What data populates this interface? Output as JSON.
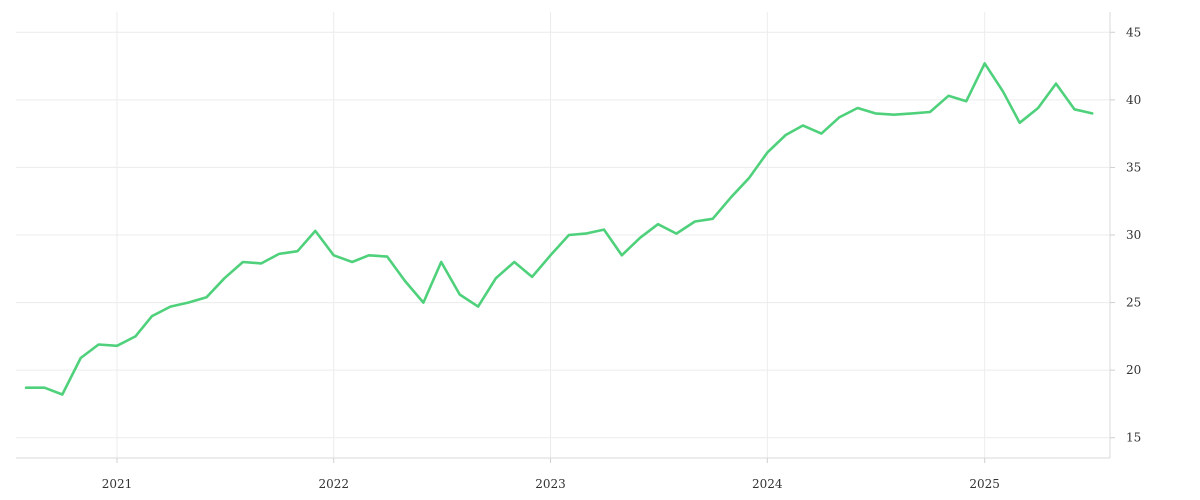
{
  "chart_data": {
    "type": "line",
    "title": "",
    "xlabel": "",
    "ylabel": "",
    "x_tick_labels": [
      "2021",
      "2022",
      "2023",
      "2024",
      "2025"
    ],
    "y_tick_labels": [
      "15",
      "20",
      "25",
      "30",
      "35",
      "40",
      "45"
    ],
    "xlim": [
      "2020-07-15",
      "2025-07-31"
    ],
    "ylim": [
      13.5,
      46.5
    ],
    "grid": true,
    "legend": "none",
    "line_color": "#4fd17c",
    "series": [
      {
        "x": [
          "2020-08-01",
          "2020-09-01",
          "2020-10-01",
          "2020-11-01",
          "2020-12-01",
          "2021-01-01",
          "2021-02-01",
          "2021-03-01",
          "2021-04-01",
          "2021-05-01",
          "2021-06-01",
          "2021-07-01",
          "2021-08-01",
          "2021-09-01",
          "2021-10-01",
          "2021-11-01",
          "2021-12-01",
          "2022-01-01",
          "2022-02-01",
          "2022-03-01",
          "2022-04-01",
          "2022-05-01",
          "2022-06-01",
          "2022-07-01",
          "2022-08-01",
          "2022-09-01",
          "2022-10-01",
          "2022-11-01",
          "2022-12-01",
          "2023-01-01",
          "2023-02-01",
          "2023-03-01",
          "2023-04-01",
          "2023-05-01",
          "2023-06-01",
          "2023-07-01",
          "2023-08-01",
          "2023-09-01",
          "2023-10-01",
          "2023-11-01",
          "2023-12-01",
          "2024-01-01",
          "2024-02-01",
          "2024-03-01",
          "2024-04-01",
          "2024-05-01",
          "2024-06-01",
          "2024-07-01",
          "2024-08-01",
          "2024-09-01",
          "2024-10-01",
          "2024-11-01",
          "2024-12-01",
          "2025-01-01",
          "2025-02-01",
          "2025-03-01",
          "2025-04-01",
          "2025-05-01",
          "2025-06-01",
          "2025-07-01"
        ],
        "values": [
          18.7,
          18.7,
          18.2,
          20.9,
          21.9,
          21.8,
          22.5,
          24.0,
          24.7,
          25.0,
          25.4,
          26.8,
          28.0,
          27.9,
          28.6,
          28.8,
          30.3,
          28.5,
          28.0,
          28.5,
          28.4,
          26.6,
          25.0,
          28.0,
          25.6,
          24.7,
          26.8,
          28.0,
          26.9,
          28.5,
          30.0,
          30.1,
          30.4,
          28.5,
          29.8,
          30.8,
          30.1,
          31.0,
          31.2,
          32.8,
          34.2,
          36.1,
          37.4,
          38.1,
          37.5,
          38.7,
          39.4,
          39.0,
          38.9,
          39.0,
          39.1,
          40.3,
          39.9,
          42.7,
          40.6,
          38.3,
          39.4,
          41.2,
          39.3,
          39.0
        ]
      }
    ]
  }
}
